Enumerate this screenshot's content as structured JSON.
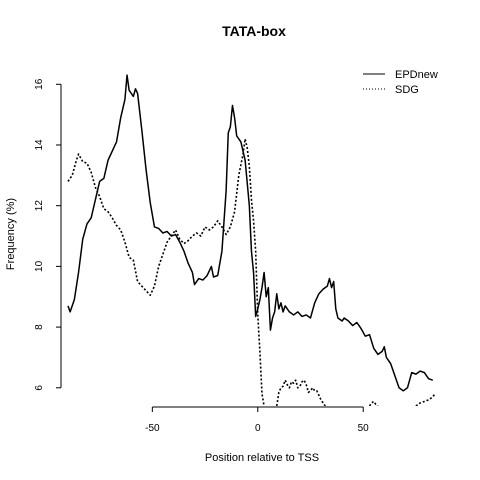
{
  "chart_data": {
    "type": "line",
    "title": "TATA-box",
    "xlabel": "Position relative to TSS",
    "ylabel": "Frequency (%)",
    "xlim": [
      -90,
      85
    ],
    "ylim": [
      5.4,
      16.8
    ],
    "x_ticks": [
      -50,
      0,
      50
    ],
    "y_ticks": [
      6,
      8,
      10,
      12,
      14,
      16
    ],
    "x_tick_labels": [
      "-50",
      "0",
      "50"
    ],
    "y_tick_labels": [
      "6",
      "8",
      "10",
      "12",
      "14",
      "16"
    ],
    "grid": false,
    "legend_position": "top-right",
    "series": [
      {
        "name": "EPDnew",
        "style": "solid",
        "color": "#000000",
        "points": [
          [
            -90,
            8.7
          ],
          [
            -89,
            8.5
          ],
          [
            -87,
            8.9
          ],
          [
            -85,
            9.8
          ],
          [
            -83,
            10.9
          ],
          [
            -81,
            11.4
          ],
          [
            -79,
            11.6
          ],
          [
            -77,
            12.2
          ],
          [
            -75,
            12.8
          ],
          [
            -73,
            12.9
          ],
          [
            -71,
            13.5
          ],
          [
            -69,
            13.8
          ],
          [
            -67,
            14.1
          ],
          [
            -65,
            14.9
          ],
          [
            -63,
            15.5
          ],
          [
            -62,
            16.3
          ],
          [
            -61,
            15.8
          ],
          [
            -59,
            15.6
          ],
          [
            -58,
            15.85
          ],
          [
            -57,
            15.7
          ],
          [
            -55,
            14.5
          ],
          [
            -53,
            13.2
          ],
          [
            -51,
            12.1
          ],
          [
            -49,
            11.3
          ],
          [
            -47,
            11.25
          ],
          [
            -45,
            11.1
          ],
          [
            -43,
            11.15
          ],
          [
            -41,
            11.0
          ],
          [
            -39,
            11.05
          ],
          [
            -37,
            10.8
          ],
          [
            -35,
            10.5
          ],
          [
            -33,
            10.1
          ],
          [
            -31,
            9.8
          ],
          [
            -30,
            9.4
          ],
          [
            -28,
            9.6
          ],
          [
            -26,
            9.55
          ],
          [
            -24,
            9.7
          ],
          [
            -22,
            10.0
          ],
          [
            -21,
            9.65
          ],
          [
            -19,
            9.7
          ],
          [
            -17,
            10.5
          ],
          [
            -15,
            12.5
          ],
          [
            -14,
            14.4
          ],
          [
            -13,
            14.6
          ],
          [
            -12,
            15.3
          ],
          [
            -11,
            14.9
          ],
          [
            -10,
            14.3
          ],
          [
            -8,
            14.1
          ],
          [
            -6,
            13.5
          ],
          [
            -4,
            12.0
          ],
          [
            -3,
            10.5
          ],
          [
            -2,
            9.8
          ],
          [
            -1,
            8.35
          ],
          [
            0,
            8.6
          ],
          [
            1,
            8.9
          ],
          [
            2,
            9.3
          ],
          [
            3,
            9.8
          ],
          [
            4,
            9.0
          ],
          [
            5,
            9.3
          ],
          [
            6,
            7.9
          ],
          [
            7,
            8.3
          ],
          [
            8,
            8.5
          ],
          [
            9,
            9.1
          ],
          [
            10,
            8.6
          ],
          [
            11,
            8.8
          ],
          [
            12,
            8.5
          ],
          [
            13,
            8.7
          ],
          [
            15,
            8.5
          ],
          [
            17,
            8.4
          ],
          [
            19,
            8.5
          ],
          [
            21,
            8.35
          ],
          [
            23,
            8.4
          ],
          [
            25,
            8.3
          ],
          [
            27,
            8.8
          ],
          [
            29,
            9.1
          ],
          [
            31,
            9.25
          ],
          [
            33,
            9.35
          ],
          [
            34,
            9.6
          ],
          [
            35,
            9.3
          ],
          [
            36,
            9.5
          ],
          [
            37,
            8.6
          ],
          [
            38,
            8.3
          ],
          [
            40,
            8.2
          ],
          [
            41,
            8.3
          ],
          [
            43,
            8.2
          ],
          [
            45,
            8.05
          ],
          [
            47,
            8.15
          ],
          [
            49,
            7.95
          ],
          [
            51,
            7.7
          ],
          [
            53,
            7.75
          ],
          [
            55,
            7.3
          ],
          [
            57,
            7.1
          ],
          [
            59,
            7.2
          ],
          [
            60,
            7.35
          ],
          [
            61,
            7.0
          ],
          [
            63,
            6.8
          ],
          [
            65,
            6.4
          ],
          [
            67,
            6.0
          ],
          [
            69,
            5.9
          ],
          [
            71,
            6.0
          ],
          [
            73,
            6.5
          ],
          [
            75,
            6.45
          ],
          [
            77,
            6.55
          ],
          [
            79,
            6.5
          ],
          [
            81,
            6.3
          ],
          [
            83,
            6.25
          ]
        ]
      },
      {
        "name": "SDG",
        "style": "dotted",
        "color": "#000000",
        "points": [
          [
            -90,
            12.8
          ],
          [
            -88,
            13.0
          ],
          [
            -86,
            13.5
          ],
          [
            -85,
            13.7
          ],
          [
            -83,
            13.45
          ],
          [
            -81,
            13.4
          ],
          [
            -79,
            13.1
          ],
          [
            -77,
            12.6
          ],
          [
            -75,
            12.3
          ],
          [
            -73,
            11.9
          ],
          [
            -71,
            11.8
          ],
          [
            -69,
            11.6
          ],
          [
            -67,
            11.35
          ],
          [
            -65,
            11.2
          ],
          [
            -63,
            10.8
          ],
          [
            -61,
            10.3
          ],
          [
            -59,
            10.2
          ],
          [
            -57,
            9.5
          ],
          [
            -55,
            9.35
          ],
          [
            -53,
            9.2
          ],
          [
            -51,
            9.05
          ],
          [
            -49,
            9.35
          ],
          [
            -47,
            10.0
          ],
          [
            -45,
            10.4
          ],
          [
            -43,
            10.8
          ],
          [
            -41,
            11.0
          ],
          [
            -39,
            11.2
          ],
          [
            -37,
            10.9
          ],
          [
            -35,
            10.75
          ],
          [
            -33,
            10.85
          ],
          [
            -31,
            11.0
          ],
          [
            -29,
            11.1
          ],
          [
            -27,
            11.0
          ],
          [
            -25,
            11.3
          ],
          [
            -23,
            11.2
          ],
          [
            -21,
            11.3
          ],
          [
            -19,
            11.5
          ],
          [
            -17,
            11.3
          ],
          [
            -15,
            11.05
          ],
          [
            -13,
            11.3
          ],
          [
            -11,
            11.8
          ],
          [
            -9,
            13.0
          ],
          [
            -7,
            13.7
          ],
          [
            -6,
            14.2
          ],
          [
            -5,
            13.9
          ],
          [
            -4,
            13.3
          ],
          [
            -3,
            12.2
          ],
          [
            -2,
            11.5
          ],
          [
            -1,
            10.5
          ],
          [
            0,
            8.4
          ],
          [
            1,
            7.2
          ],
          [
            2,
            5.8
          ],
          [
            3,
            5.4
          ]
        ]
      },
      {
        "name": "SDG",
        "style": "dotted",
        "color": "#000000",
        "points": [
          [
            9,
            5.4
          ],
          [
            10,
            5.85
          ],
          [
            11,
            6.0
          ],
          [
            12,
            6.05
          ],
          [
            13,
            6.25
          ],
          [
            14,
            6.1
          ],
          [
            15,
            6.0
          ],
          [
            16,
            6.2
          ],
          [
            17,
            6.15
          ],
          [
            18,
            6.25
          ],
          [
            19,
            6.0
          ],
          [
            20,
            6.05
          ],
          [
            21,
            6.2
          ],
          [
            22,
            6.25
          ],
          [
            23,
            6.1
          ],
          [
            24,
            5.85
          ],
          [
            25,
            5.9
          ],
          [
            26,
            6.0
          ],
          [
            27,
            5.9
          ],
          [
            28,
            5.9
          ],
          [
            29,
            5.75
          ],
          [
            30,
            5.6
          ],
          [
            31,
            5.5
          ],
          [
            32,
            5.4
          ]
        ]
      },
      {
        "name": "SDG",
        "style": "dotted",
        "color": "#000000",
        "points": [
          [
            53,
            5.4
          ],
          [
            54,
            5.5
          ],
          [
            55,
            5.55
          ],
          [
            56,
            5.45
          ],
          [
            57,
            5.4
          ]
        ]
      },
      {
        "name": "SDG",
        "style": "dotted",
        "color": "#000000",
        "points": [
          [
            75,
            5.4
          ],
          [
            77,
            5.5
          ],
          [
            79,
            5.55
          ],
          [
            81,
            5.6
          ],
          [
            83,
            5.7
          ],
          [
            84,
            5.8
          ]
        ]
      }
    ],
    "legend": [
      {
        "label": "EPDnew",
        "style": "solid"
      },
      {
        "label": "SDG",
        "style": "dotted"
      }
    ]
  }
}
